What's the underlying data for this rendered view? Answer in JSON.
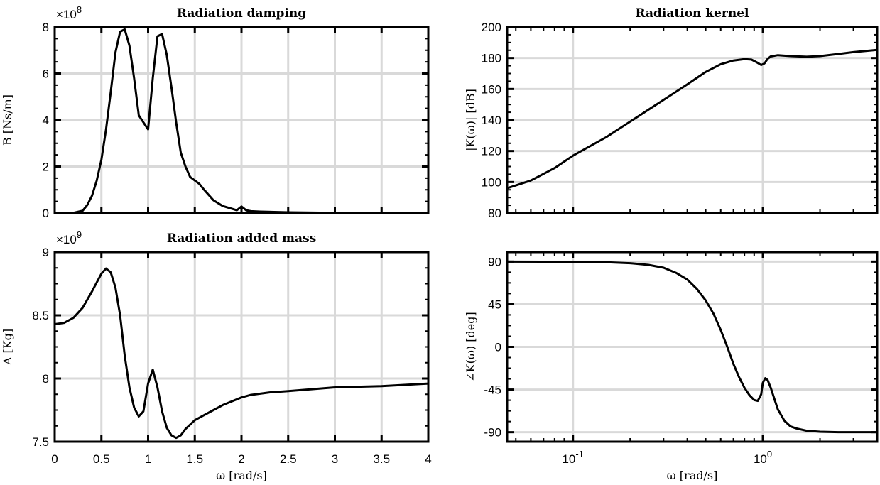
{
  "chart_data": [
    {
      "id": "damping",
      "type": "line",
      "title": "Radiation damping",
      "xlabel": "",
      "ylabel": "B [Ns/m]",
      "multiplier": "×10",
      "multiplier_exp": "8",
      "xscale": "linear",
      "xlim": [
        0,
        4
      ],
      "ylim": [
        0,
        8
      ],
      "xticks": [
        0,
        0.5,
        1,
        1.5,
        2,
        2.5,
        3,
        3.5,
        4
      ],
      "xtick_labels": [
        "",
        "",
        "",
        "",
        "",
        "",
        "",
        "",
        ""
      ],
      "yticks": [
        0,
        2,
        4,
        6,
        8
      ],
      "ytick_labels": [
        "0",
        "2",
        "4",
        "6",
        "8"
      ],
      "grid": true,
      "series": [
        {
          "x": [
            0,
            0.2,
            0.3,
            0.35,
            0.4,
            0.45,
            0.5,
            0.55,
            0.6,
            0.65,
            0.7,
            0.75,
            0.8,
            0.85,
            0.9,
            0.95,
            1.0,
            1.05,
            1.1,
            1.15,
            1.2,
            1.25,
            1.3,
            1.35,
            1.4,
            1.45,
            1.5,
            1.55,
            1.6,
            1.7,
            1.8,
            1.9,
            1.95,
            2.0,
            2.05,
            2.1,
            2.2,
            2.5,
            3.0,
            3.5,
            4.0
          ],
          "y": [
            0,
            0.01,
            0.1,
            0.35,
            0.75,
            1.4,
            2.3,
            3.6,
            5.2,
            6.9,
            7.8,
            7.9,
            7.2,
            5.8,
            4.2,
            3.9,
            3.6,
            5.8,
            7.6,
            7.7,
            6.8,
            5.4,
            3.9,
            2.6,
            2.0,
            1.55,
            1.4,
            1.25,
            1.0,
            0.55,
            0.3,
            0.18,
            0.12,
            0.28,
            0.12,
            0.08,
            0.06,
            0.03,
            0.01,
            0.005,
            0.0
          ]
        }
      ]
    },
    {
      "id": "added_mass",
      "type": "line",
      "title": "Radiation added mass",
      "xlabel": "ω [rad/s]",
      "ylabel": "A [Kg]",
      "multiplier": "×10",
      "multiplier_exp": "9",
      "xscale": "linear",
      "xlim": [
        0,
        4
      ],
      "ylim": [
        7.5,
        9
      ],
      "xticks": [
        0,
        0.5,
        1,
        1.5,
        2,
        2.5,
        3,
        3.5,
        4
      ],
      "xtick_labels": [
        "0",
        "0.5",
        "1",
        "1.5",
        "2",
        "2.5",
        "3",
        "3.5",
        "4"
      ],
      "yticks": [
        7.5,
        8,
        8.5,
        9
      ],
      "ytick_labels": [
        "7.5",
        "8",
        "8.5",
        "9"
      ],
      "grid": true,
      "series": [
        {
          "x": [
            0,
            0.1,
            0.2,
            0.3,
            0.4,
            0.5,
            0.55,
            0.6,
            0.65,
            0.7,
            0.75,
            0.8,
            0.85,
            0.9,
            0.95,
            1.0,
            1.05,
            1.1,
            1.15,
            1.2,
            1.25,
            1.3,
            1.35,
            1.4,
            1.5,
            1.6,
            1.7,
            1.8,
            1.9,
            2.0,
            2.1,
            2.3,
            2.5,
            3.0,
            3.5,
            4.0
          ],
          "y": [
            8.43,
            8.44,
            8.48,
            8.56,
            8.69,
            8.83,
            8.87,
            8.84,
            8.72,
            8.5,
            8.18,
            7.93,
            7.77,
            7.7,
            7.74,
            7.96,
            8.07,
            7.93,
            7.74,
            7.61,
            7.55,
            7.53,
            7.55,
            7.6,
            7.67,
            7.71,
            7.75,
            7.79,
            7.82,
            7.85,
            7.87,
            7.89,
            7.9,
            7.93,
            7.94,
            7.96
          ]
        }
      ]
    },
    {
      "id": "kernel_mag",
      "type": "line",
      "title": "Radiation kernel",
      "xlabel": "",
      "ylabel": "|K(ω)| [dB]",
      "xscale": "log",
      "xlim": [
        0.045,
        4
      ],
      "ylim": [
        80,
        200
      ],
      "xticks": [
        0.1,
        1
      ],
      "xtick_labels": [
        "",
        ""
      ],
      "yticks": [
        80,
        100,
        120,
        140,
        160,
        180,
        200
      ],
      "ytick_labels": [
        "80",
        "100",
        "120",
        "140",
        "160",
        "180",
        "200"
      ],
      "grid": true,
      "series": [
        {
          "x": [
            0.045,
            0.06,
            0.08,
            0.1,
            0.15,
            0.2,
            0.3,
            0.4,
            0.5,
            0.6,
            0.7,
            0.8,
            0.87,
            0.93,
            0.98,
            1.02,
            1.06,
            1.1,
            1.2,
            1.4,
            1.7,
            2.0,
            2.5,
            3.0,
            4.0
          ],
          "y": [
            96,
            101,
            109,
            117,
            129,
            139,
            153,
            163,
            171,
            176,
            178.4,
            179.3,
            179.0,
            177.2,
            175.5,
            176.5,
            179.5,
            181.0,
            181.8,
            181.2,
            180.8,
            181.2,
            182.6,
            183.8,
            185.2
          ]
        }
      ]
    },
    {
      "id": "kernel_phase",
      "type": "line",
      "title": "",
      "xlabel": "ω [rad/s]",
      "ylabel": "∠K(ω) [deg]",
      "xscale": "log",
      "xlim": [
        0.045,
        4
      ],
      "ylim": [
        -100,
        100
      ],
      "xticks": [
        0.1,
        1
      ],
      "xtick_labels": [
        "10",
        "10"
      ],
      "xtick_exps": [
        "-1",
        "0"
      ],
      "yticks": [
        -90,
        -45,
        0,
        45,
        90
      ],
      "ytick_labels": [
        "-90",
        "-45",
        "0",
        "45",
        "90"
      ],
      "grid": true,
      "series": [
        {
          "x": [
            0.045,
            0.1,
            0.15,
            0.2,
            0.25,
            0.3,
            0.35,
            0.4,
            0.45,
            0.5,
            0.55,
            0.6,
            0.65,
            0.7,
            0.75,
            0.8,
            0.85,
            0.9,
            0.94,
            0.98,
            1.0,
            1.03,
            1.06,
            1.1,
            1.15,
            1.2,
            1.3,
            1.4,
            1.5,
            1.7,
            2.0,
            2.5,
            3.0,
            4.0
          ],
          "y": [
            90,
            89.8,
            89.4,
            88.3,
            86.5,
            83.5,
            78,
            71,
            61,
            49,
            35,
            18,
            0,
            -18,
            -32,
            -43,
            -51,
            -56,
            -57,
            -50,
            -38,
            -33,
            -35,
            -43,
            -55,
            -66,
            -78,
            -84,
            -86,
            -88.5,
            -89.5,
            -90,
            -90,
            -90
          ]
        }
      ]
    }
  ]
}
